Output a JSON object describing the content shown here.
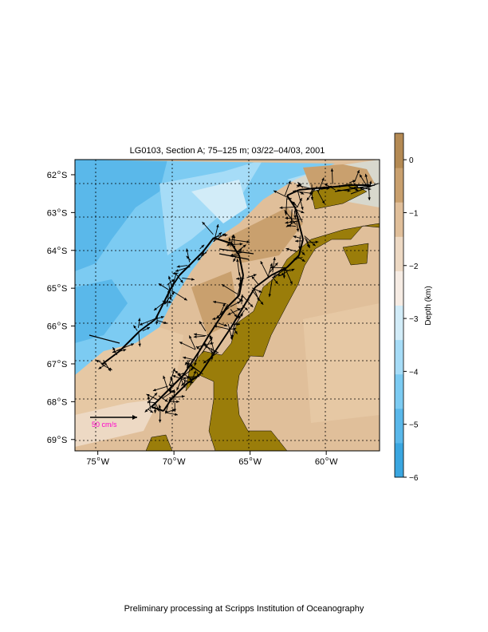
{
  "title": "LG0103, Section A; 75–125 m; 03/22–04/03, 2001",
  "footer": "Preliminary processing at Scripps Institution of Oceanography",
  "map": {
    "x_ticks": [
      {
        "lon": -75,
        "label": "75",
        "suffix": "W"
      },
      {
        "lon": -70,
        "label": "70",
        "suffix": "W"
      },
      {
        "lon": -65,
        "label": "65",
        "suffix": "W"
      },
      {
        "lon": -60,
        "label": "60",
        "suffix": "W"
      }
    ],
    "y_ticks": [
      {
        "lat": -62,
        "label": "62",
        "suffix": "S"
      },
      {
        "lat": -63,
        "label": "63",
        "suffix": "S"
      },
      {
        "lat": -64,
        "label": "64",
        "suffix": "S"
      },
      {
        "lat": -65,
        "label": "65",
        "suffix": "S"
      },
      {
        "lat": -66,
        "label": "66",
        "suffix": "S"
      },
      {
        "lat": -67,
        "label": "67",
        "suffix": "S"
      },
      {
        "lat": -68,
        "label": "68",
        "suffix": "S"
      },
      {
        "lat": -69,
        "label": "69",
        "suffix": "S"
      }
    ],
    "lon_range": [
      -76.5,
      -56.5
    ],
    "lat_range": [
      -69.3,
      -61.6
    ],
    "grid": "dotted",
    "scale_arrow": {
      "label": "50 cm/s",
      "color": "#ff00cc"
    },
    "land_color": "#9a7d0a",
    "track_color": "#000000"
  },
  "colorbar": {
    "label": "Depth (km)",
    "ticks": [
      "0",
      "−1",
      "−2",
      "−3",
      "−4",
      "−5",
      "−6"
    ],
    "tick_values": [
      0,
      -1,
      -2,
      -3,
      -4,
      -5,
      -6
    ],
    "range": [
      -6,
      0.5
    ],
    "colors_bottom_to_top": [
      "#3aa6e0",
      "#5ab8ea",
      "#7ccbf2",
      "#a6dcf7",
      "#d2ecf8",
      "#f6ece4",
      "#edd9c4",
      "#e0bf9a",
      "#c9a06e",
      "#b48a54"
    ]
  }
}
